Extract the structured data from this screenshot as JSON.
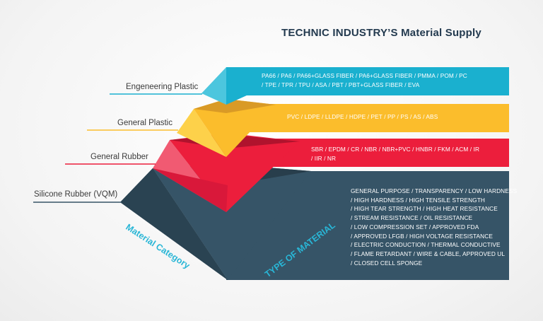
{
  "title": "TECHNIC INDUSTRY’S Material Supply",
  "tiers": [
    {
      "label": "Engeneering Plastic",
      "color": "#1ab0cf",
      "lines": [
        "PA66 / PA6 / PA66+GLASS FIBER / PA6+GLASS FIBER / PMMA / POM / PC",
        "/ TPE / TPR / TPU / ASA / PBT / PBT+GLASS FIBER / EVA"
      ]
    },
    {
      "label": "General Plastic",
      "color": "#fbbd2c",
      "lines": [
        "PVC / LDPE / LLDPE / HDPE / PET / PP / PS / AS / ABS"
      ]
    },
    {
      "label": "General Rubber",
      "color": "#ec1e3c",
      "lines": [
        "SBR / EPDM / CR / NBR / NBR+PVC / HNBR / FKM / ACM / IR",
        "/ IIR / NR"
      ]
    },
    {
      "label": "Silicone Rubber (VQM)",
      "color": "#365467",
      "lines": [
        "GENERAL PURPOSE / TRANSPARENCY / LOW HARDNESS",
        "/ HIGH HARDNESS / HIGH TENSILE STRENGTH",
        "/ HIGH TEAR STRENGTH / HIGH HEAT RESISTANCE",
        "/ STREAM RESISTANCE / OIL RESISTANCE",
        "/ LOW COMPRESSION SET / APPROVED FDA",
        "/ APPROVED LFGB / HIGH VOLTAGE RESISTANCE",
        "/ ELECTRIC CONDUCTION / THERMAL CONDUCTIVE",
        "/ FLAME RETARDANT / WIRE & CABLE, APPROVED UL",
        "/ CLOSED CELL SPONGE"
      ]
    }
  ],
  "axis_left": "Material Category",
  "axis_right": "TYPE OF MATERIAL",
  "colors": {
    "title": "#233a4f",
    "axis_left": "#29b6d6",
    "axis_right": "#29b6d6"
  }
}
